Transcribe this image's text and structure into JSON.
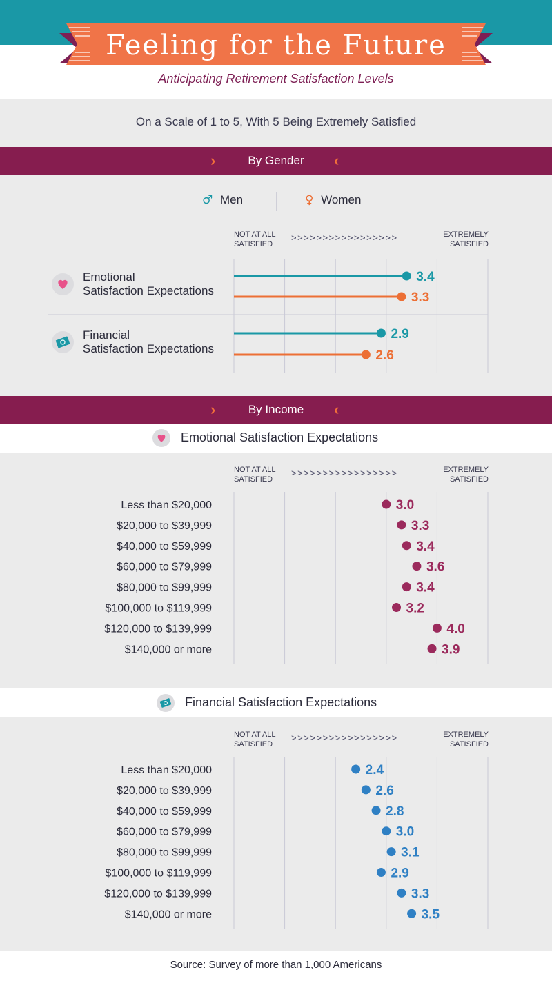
{
  "header": {
    "title": "Feeling for the Future",
    "subtitle": "Anticipating Retirement Satisfaction Levels",
    "scale_note": "On a Scale of 1 to 5, With 5 Being Extremely Satisfied"
  },
  "sections": {
    "gender": "By Gender",
    "income": "By Income"
  },
  "legend": {
    "men": "Men",
    "women": "Women"
  },
  "scale": {
    "low_line1": "NOT AT ALL",
    "low_line2": "SATISFIED",
    "high_line1": "EXTREMELY",
    "high_line2": "SATISFIED",
    "arrows": ">>>>>>>>>>>>>>>>>"
  },
  "colors": {
    "teal": "#1a98a6",
    "orange": "#ec6f35",
    "plum": "#861d4f",
    "pink": "#e8528a",
    "blue": "#2f80c4",
    "light_blue": "#62b8e6"
  },
  "chart_data": [
    {
      "type": "lollipop",
      "title": "By Gender",
      "categories": [
        "Emotional Satisfaction Expectations",
        "Financial Satisfaction Expectations"
      ],
      "category_lines": [
        [
          "Emotional",
          "Satisfaction Expectations"
        ],
        [
          "Financial",
          "Satisfaction Expectations"
        ]
      ],
      "series": [
        {
          "name": "Men",
          "values": [
            3.4,
            2.9
          ]
        },
        {
          "name": "Women",
          "values": [
            3.3,
            2.6
          ]
        }
      ],
      "xlim": [
        1,
        5
      ]
    },
    {
      "type": "lollipop",
      "title": "Emotional Satisfaction Expectations",
      "categories": [
        "Less than $20,000",
        "$20,000 to $39,999",
        "$40,000 to $59,999",
        "$60,000 to $79,999",
        "$80,000 to $99,999",
        "$100,000 to $119,999",
        "$120,000 to $139,999",
        "$140,000 or more"
      ],
      "values": [
        3.0,
        3.3,
        3.4,
        3.6,
        3.4,
        3.2,
        4.0,
        3.9
      ],
      "labels": [
        "3.0",
        "3.3",
        "3.4",
        "3.6",
        "3.4",
        "3.2",
        "4.0",
        "3.9"
      ],
      "xlim": [
        1,
        5
      ]
    },
    {
      "type": "lollipop",
      "title": "Financial Satisfaction Expectations",
      "categories": [
        "Less than $20,000",
        "$20,000 to $39,999",
        "$40,000 to $59,999",
        "$60,000 to $79,999",
        "$80,000 to $99,999",
        "$100,000 to $119,999",
        "$120,000 to $139,999",
        "$140,000 or more"
      ],
      "values": [
        2.4,
        2.6,
        2.8,
        3.0,
        3.1,
        2.9,
        3.3,
        3.5
      ],
      "labels": [
        "2.4",
        "2.6",
        "2.8",
        "3.0",
        "3.1",
        "2.9",
        "3.3",
        "3.5"
      ],
      "xlim": [
        1,
        5
      ]
    }
  ],
  "footer": {
    "source": "Source: Survey of more than 1,000 Americans"
  }
}
